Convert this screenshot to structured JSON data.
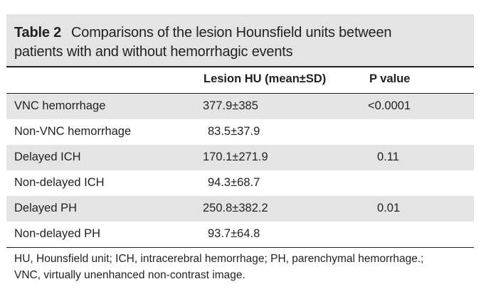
{
  "table": {
    "label": "Table 2",
    "title_line1": "Comparisons of the lesion Hounsfield units between",
    "title_line2": "patients with and without hemorrhagic events",
    "headers": {
      "hu": "Lesion HU (mean±SD)",
      "p": "P value"
    },
    "rows": [
      {
        "label": "VNC hemorrhage",
        "hu": "377.9±385",
        "p": "<0.0001"
      },
      {
        "label": "Non-VNC hemorrhage",
        "hu": "83.5±37.9",
        "p": ""
      },
      {
        "label": "Delayed ICH",
        "hu": "170.1±271.9",
        "p": "0.11"
      },
      {
        "label": "Non-delayed ICH",
        "hu": "94.3±68.7",
        "p": ""
      },
      {
        "label": "Delayed PH",
        "hu": "250.8±382.2",
        "p": "0.01"
      },
      {
        "label": "Non-delayed PH",
        "hu": "93.7±64.8",
        "p": ""
      }
    ],
    "footnote_line1": "HU, Hounsfield unit; ICH, intracerebral hemorrhage; PH, parenchymal hemorrhage.;",
    "footnote_line2": "VNC, virtually unenhanced non-contrast image."
  },
  "colors": {
    "shade": "#e5e4e4",
    "text": "#231f20",
    "rule": "#231f20"
  }
}
